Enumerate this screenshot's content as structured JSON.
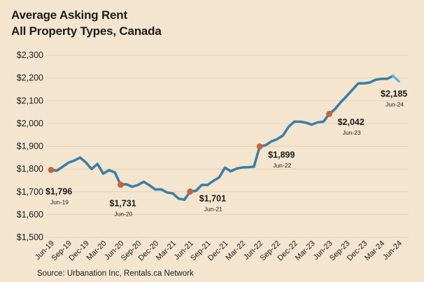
{
  "header": {
    "title_line1": "Average Asking Rent",
    "title_line2": "All Property Types, Canada"
  },
  "footer": {
    "source": "Source: Urbanation Inc, Rentals.ca Network"
  },
  "colors": {
    "background": "#f4e5cf",
    "line": "#3a7fa8",
    "line_latest": "#63b7e0",
    "marker": "#c7643a",
    "gridline": "#e2d0b6",
    "text": "#1c1c1c"
  },
  "chart_data": {
    "type": "line",
    "title": "Average Asking Rent\nAll Property Types, Canada",
    "xlabel": "",
    "ylabel": "",
    "ylim": [
      1500,
      2300
    ],
    "yticks": [
      1500,
      1600,
      1700,
      1800,
      1900,
      2000,
      2100,
      2200,
      2300
    ],
    "ytick_labels": [
      "$1,500",
      "$1,600",
      "$1,700",
      "$1,800",
      "$1,900",
      "$2,000",
      "$2,100",
      "$2,200",
      "$2,300"
    ],
    "x_tick_labels": [
      "Jun-19",
      "Sep-19",
      "Dec-19",
      "Mar-20",
      "Jun-20",
      "Sep-20",
      "Dec-20",
      "Mar-21",
      "Jun-21",
      "Sep-21",
      "Dec-21",
      "Mar-22",
      "Jun-22",
      "Sep-22",
      "Dec-22",
      "Mar-23",
      "Jun-23",
      "Sep-23",
      "Dec-23",
      "Mar-24",
      "Jun-24"
    ],
    "grid": true,
    "series": [
      {
        "x": [
          "Jun-19",
          "Jul-19",
          "Aug-19",
          "Sep-19",
          "Oct-19",
          "Nov-19",
          "Dec-19",
          "Jan-20",
          "Feb-20",
          "Mar-20",
          "Apr-20",
          "May-20",
          "Jun-20",
          "Jul-20",
          "Aug-20",
          "Sep-20",
          "Oct-20",
          "Nov-20",
          "Dec-20",
          "Jan-21",
          "Feb-21",
          "Mar-21",
          "Apr-21",
          "May-21",
          "Jun-21",
          "Jul-21",
          "Aug-21",
          "Sep-21",
          "Oct-21",
          "Nov-21",
          "Dec-21",
          "Jan-22",
          "Feb-22",
          "Mar-22",
          "Apr-22",
          "May-22",
          "Jun-22",
          "Jul-22",
          "Aug-22",
          "Sep-22",
          "Oct-22",
          "Nov-22",
          "Dec-22",
          "Jan-23",
          "Feb-23",
          "Mar-23",
          "Apr-23",
          "May-23",
          "Jun-23",
          "Jul-23",
          "Aug-23",
          "Sep-23",
          "Oct-23",
          "Nov-23",
          "Dec-23",
          "Jan-24",
          "Feb-24",
          "Mar-24",
          "Apr-24",
          "May-24",
          "Jun-24"
        ],
        "values": [
          1796,
          1793,
          1810,
          1828,
          1837,
          1850,
          1829,
          1800,
          1822,
          1780,
          1795,
          1785,
          1731,
          1733,
          1722,
          1730,
          1744,
          1728,
          1710,
          1711,
          1697,
          1693,
          1670,
          1665,
          1701,
          1704,
          1730,
          1730,
          1748,
          1763,
          1806,
          1790,
          1802,
          1807,
          1808,
          1810,
          1899,
          1904,
          1921,
          1931,
          1947,
          1986,
          2008,
          2008,
          2003,
          1995,
          2005,
          2008,
          2042,
          2063,
          2094,
          2120,
          2148,
          2176,
          2176,
          2180,
          2192,
          2196,
          2196,
          2209,
          2185
        ]
      }
    ],
    "annotations": [
      {
        "x": "Jun-19",
        "value": 1796,
        "label": "$1,796",
        "sublabel": "Jun-19"
      },
      {
        "x": "Jun-20",
        "value": 1731,
        "label": "$1,731",
        "sublabel": "Jun-20"
      },
      {
        "x": "Jun-21",
        "value": 1701,
        "label": "$1,701",
        "sublabel": "Jun-21"
      },
      {
        "x": "Jun-22",
        "value": 1899,
        "label": "$1,899",
        "sublabel": "Jun-22"
      },
      {
        "x": "Jun-23",
        "value": 2042,
        "label": "$2,042",
        "sublabel": "Jun-23"
      },
      {
        "x": "Jun-24",
        "value": 2185,
        "label": "$2,185",
        "sublabel": "Jun-24"
      }
    ]
  }
}
